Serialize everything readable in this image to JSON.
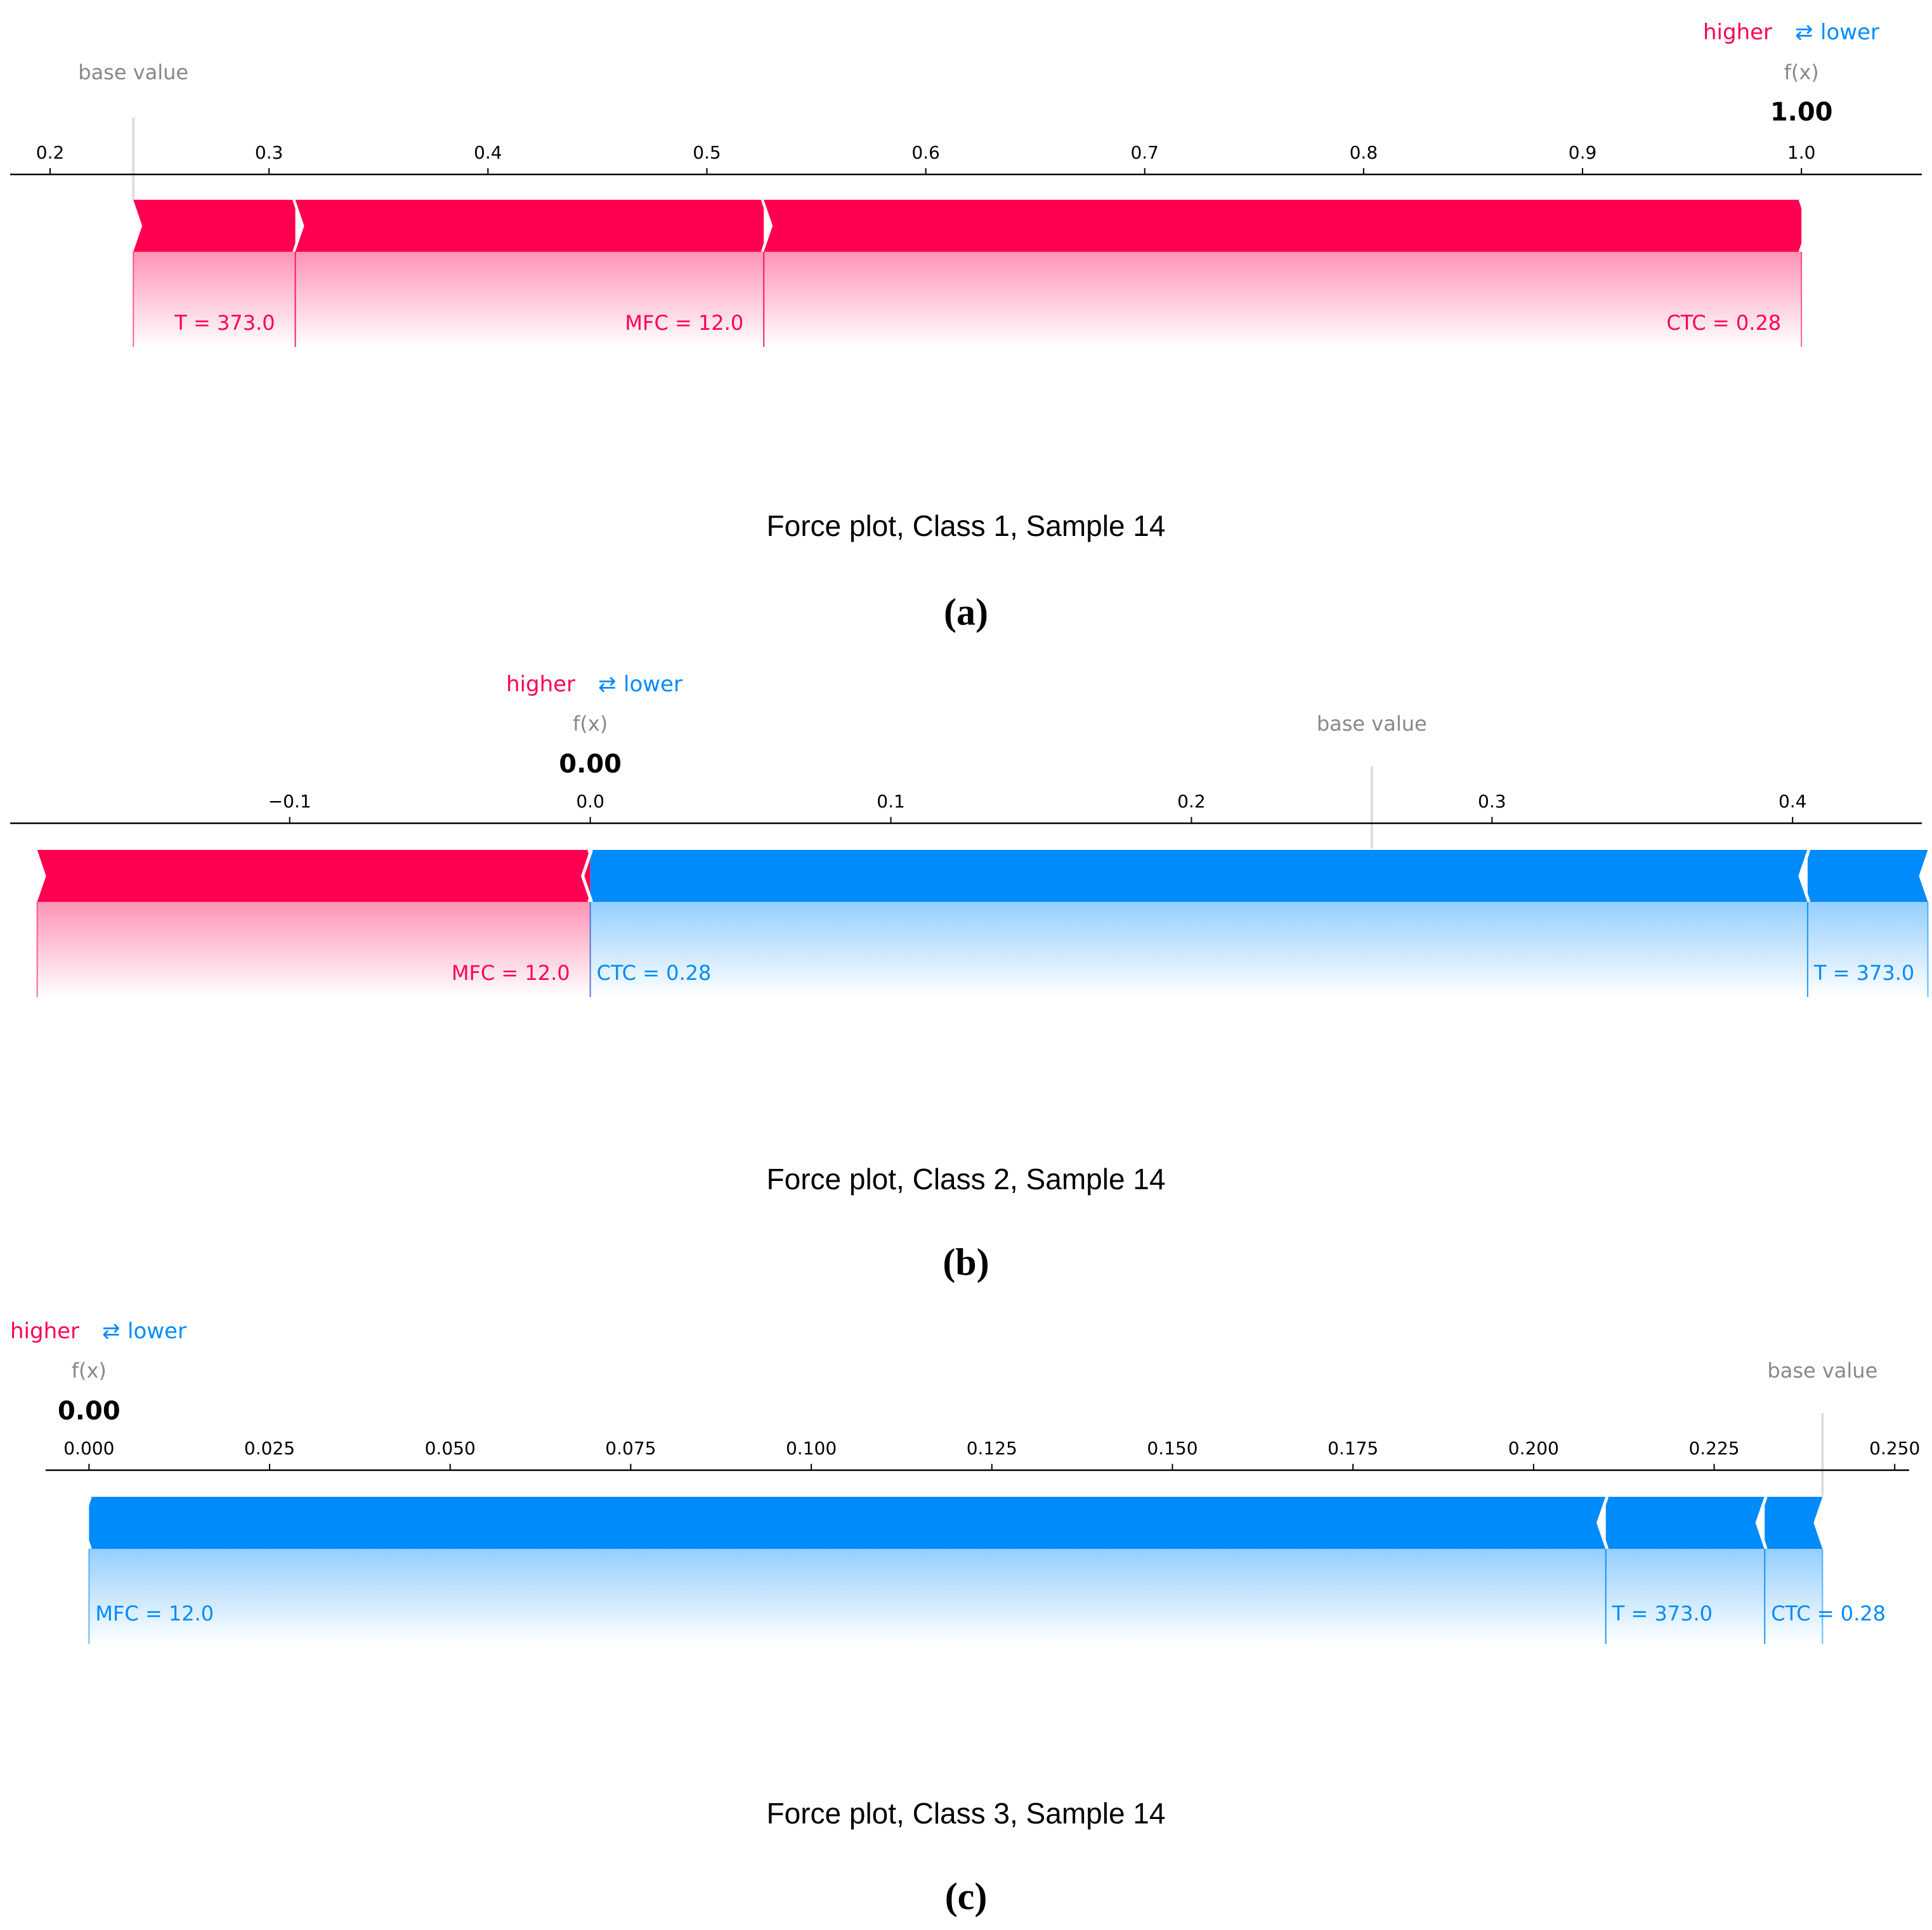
{
  "colors": {
    "higher": "#ff0051",
    "lower": "#008bfb",
    "higher_light": "#ffc3d5",
    "lower_light": "#d1e6fa",
    "tick": "#000000",
    "muted": "#888888",
    "title": "#000000"
  },
  "legend": {
    "higher": "higher",
    "arrow": "⇄",
    "lower": "lower"
  },
  "base_value_label": "base value",
  "fx_label": "f(x)",
  "chart_data": [
    {
      "type": "force",
      "panel": "(a)",
      "title": "Force plot, Class 1, Sample 14",
      "xlim": [
        0.18,
        1.055
      ],
      "ticks": [
        0.2,
        0.3,
        0.4,
        0.5,
        0.6,
        0.7,
        0.8,
        0.9,
        1.0
      ],
      "tick_labels": [
        "0.2",
        "0.3",
        "0.4",
        "0.5",
        "0.6",
        "0.7",
        "0.8",
        "0.9",
        "1.0"
      ],
      "base_value": 0.238,
      "fx": 1.0,
      "fx_label": "1.00",
      "legend_position": "top-right",
      "features": [
        {
          "label": "T = 373.0",
          "direction": "higher",
          "start": 0.238,
          "end": 0.312
        },
        {
          "label": "MFC = 12.0",
          "direction": "higher",
          "start": 0.312,
          "end": 0.526
        },
        {
          "label": "CTC = 0.28",
          "direction": "higher",
          "start": 0.526,
          "end": 1.0
        }
      ]
    },
    {
      "type": "force",
      "panel": "(b)",
      "title": "Force plot, Class 2, Sample 14",
      "xlim": [
        -0.193,
        0.443
      ],
      "ticks": [
        -0.1,
        0.0,
        0.1,
        0.2,
        0.3,
        0.4
      ],
      "tick_labels": [
        "−0.1",
        "0.0",
        "0.1",
        "0.2",
        "0.3",
        "0.4"
      ],
      "base_value": 0.26,
      "fx": 0.0,
      "fx_label": "0.00",
      "legend_position": "top-center",
      "features": [
        {
          "label": "MFC = 12.0",
          "direction": "higher",
          "start": -0.184,
          "end": 0.0
        },
        {
          "label": "CTC = 0.28",
          "direction": "lower",
          "start": 0.0,
          "end": 0.405
        },
        {
          "label": "T = 373.0",
          "direction": "lower",
          "start": 0.405,
          "end": 0.445
        }
      ]
    },
    {
      "type": "force",
      "panel": "(c)",
      "title": "Force plot, Class 3, Sample 14",
      "xlim": [
        -0.006,
        0.252
      ],
      "ticks": [
        0.0,
        0.025,
        0.05,
        0.075,
        0.1,
        0.125,
        0.15,
        0.175,
        0.2,
        0.225,
        0.25
      ],
      "tick_labels": [
        "0.000",
        "0.025",
        "0.050",
        "0.075",
        "0.100",
        "0.125",
        "0.150",
        "0.175",
        "0.200",
        "0.225",
        "0.250"
      ],
      "base_value": 0.24,
      "fx": 0.0,
      "fx_label": "0.00",
      "legend_position": "top-left",
      "features": [
        {
          "label": "MFC = 12.0",
          "direction": "lower",
          "start": 0.0,
          "end": 0.21
        },
        {
          "label": "T = 373.0",
          "direction": "lower",
          "start": 0.21,
          "end": 0.232
        },
        {
          "label": "CTC = 0.28",
          "direction": "lower",
          "start": 0.232,
          "end": 0.24
        }
      ]
    }
  ]
}
